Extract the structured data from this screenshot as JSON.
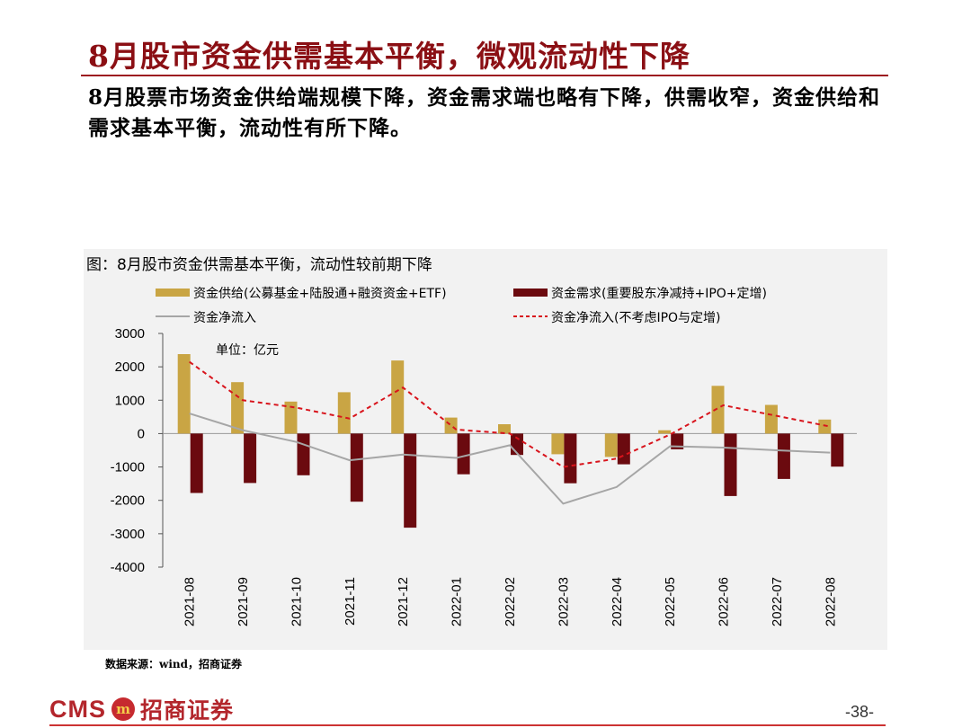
{
  "slide": {
    "title": "8月股市资金供需基本平衡，微观流动性下降",
    "subtitle": "8月股票市场资金供给端规模下降，资金需求端也略有下降，供需收窄，资金供给和需求基本平衡，流动性有所下降。",
    "chart_caption": "图：8月股市资金供需基本平衡，流动性较前期下降",
    "source": "数据来源：wind，招商证券",
    "page_number": "-38-",
    "logo": {
      "latin": "CMS",
      "mark": "m",
      "chinese": "招商证券"
    }
  },
  "colors": {
    "title": "#8b0f14",
    "supply": "#c9a544",
    "demand": "#6b0a0f",
    "net": "#a6a6a6",
    "net_ex_ipo": "#d8141c"
  },
  "chart_data": {
    "type": "bar",
    "title": "8月股市资金供需基本平衡，流动性较前期下降",
    "unit": "单位：亿元",
    "categories": [
      "2021-08",
      "2021-09",
      "2021-10",
      "2021-11",
      "2021-12",
      "2022-01",
      "2022-02",
      "2022-03",
      "2022-04",
      "2022-05",
      "2022-06",
      "2022-07",
      "2022-08"
    ],
    "ylim": [
      -4000,
      3000
    ],
    "yticks": [
      3000,
      2000,
      1000,
      0,
      -1000,
      -2000,
      -3000,
      -4000
    ],
    "xlabel": "",
    "ylabel": "",
    "series": [
      {
        "name": "资金供给(公募基金+陆股通+融资资金+ETF)",
        "kind": "bar",
        "color": "#c9a544",
        "values": [
          2380,
          1540,
          960,
          1240,
          2190,
          480,
          280,
          -620,
          -700,
          100,
          1430,
          860,
          420
        ]
      },
      {
        "name": "资金需求(重要股东净减持+IPO+定增)",
        "kind": "bar",
        "color": "#6b0a0f",
        "values": [
          -1780,
          -1480,
          -1250,
          -2040,
          -2820,
          -1220,
          -640,
          -1490,
          -920,
          -470,
          -1870,
          -1360,
          -990
        ]
      },
      {
        "name": "资金净流入",
        "kind": "line",
        "color": "#a6a6a6",
        "values": [
          600,
          100,
          -250,
          -800,
          -630,
          -730,
          -350,
          -2100,
          -1600,
          -380,
          -420,
          -500,
          -570
        ]
      },
      {
        "name": "资金净流入(不考虑IPO与定增)",
        "kind": "line-dashed",
        "color": "#d8141c",
        "values": [
          2150,
          1000,
          780,
          450,
          1380,
          120,
          0,
          -1000,
          -750,
          -30,
          850,
          530,
          210
        ]
      }
    ]
  }
}
